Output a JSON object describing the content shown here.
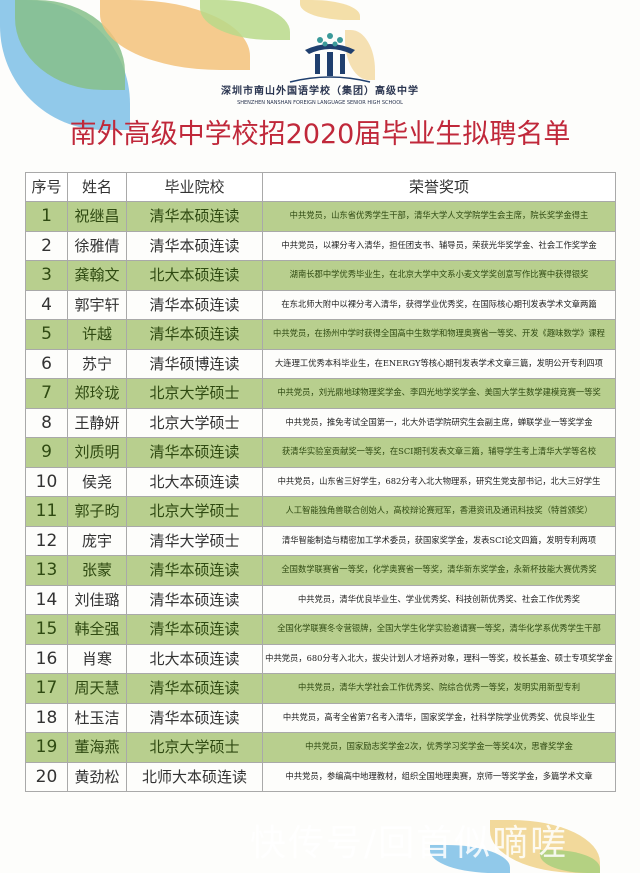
{
  "header": {
    "school_name_cn": "深圳市南山外国语学校（集团）高级中学",
    "school_name_en": "SHENZHEN NANSHAN FOREIGN LANGUAGE SENIOR HIGH SCHOOL",
    "title": "南外高级中学校招2020届毕业生拟聘名单"
  },
  "colors": {
    "title": "#c0283a",
    "row_highlight": "#b8cf8e",
    "logo": "#1f3f6e"
  },
  "table": {
    "columns": [
      "序号",
      "姓名",
      "毕业院校",
      "荣誉奖项"
    ],
    "rows": [
      {
        "no": "1",
        "name": "祝继昌",
        "school": "清华本硕连读",
        "honors": "中共党员，山东省优秀学生干部，清华大学人文学院学生会主席，院长奖学金得主"
      },
      {
        "no": "2",
        "name": "徐雅倩",
        "school": "清华本硕连读",
        "honors": "中共党员，以裸分考入清华，担任团支书、辅导员，荣获光华奖学金、社会工作奖学金"
      },
      {
        "no": "3",
        "name": "龚翰文",
        "school": "北大本硕连读",
        "honors": "湖南长郡中学优秀毕业生，在北京大学中文系小麦文学奖创意写作比赛中获得银奖"
      },
      {
        "no": "4",
        "name": "郭宇轩",
        "school": "清华本硕连读",
        "honors": "在东北师大附中以裸分考入清华，获得学业优秀奖，在国际核心期刊发表学术文章两篇"
      },
      {
        "no": "5",
        "name": "许越",
        "school": "清华本硕连读",
        "honors": "中共党员，在扬州中学时获得全国高中生数学和物理奥赛省一等奖、开发《趣味数学》课程"
      },
      {
        "no": "6",
        "name": "苏宁",
        "school": "清华硕博连读",
        "honors": "大连理工优秀本科毕业生，在ENERGY等核心期刊发表学术文章三篇，发明公开专利四项"
      },
      {
        "no": "7",
        "name": "郑玲珑",
        "school": "北京大学硕士",
        "honors": "中共党员，刘光鼎地球物理奖学金、李四光地学奖学金、美国大学生数学建模竞赛一等奖"
      },
      {
        "no": "8",
        "name": "王静妍",
        "school": "北京大学硕士",
        "honors": "中共党员，推免考试全国第一，北大外语学院研究生会副主席，蝉联学业一等奖学金"
      },
      {
        "no": "9",
        "name": "刘质明",
        "school": "清华本硕连读",
        "honors": "获清华实验室贡献奖一等奖，在SCI期刊发表文章三篇，辅导学生考上清华大学等名校"
      },
      {
        "no": "10",
        "name": "侯尧",
        "school": "北大本硕连读",
        "honors": "中共党员，山东省三好学生，682分考入北大物理系，研究生党支部书记，北大三好学生"
      },
      {
        "no": "11",
        "name": "郭子昀",
        "school": "北京大学硕士",
        "honors": "人工智能独角兽联合创始人，高校辩论赛冠军，香港资讯及通讯科技奖（特首颁奖）"
      },
      {
        "no": "12",
        "name": "庞宇",
        "school": "清华大学硕士",
        "honors": "清华智能制造与精密加工学术委员，获国家奖学金，发表SCI论文四篇，发明专利两项"
      },
      {
        "no": "13",
        "name": "张蒙",
        "school": "清华本硕连读",
        "honors": "全国数学联赛省一等奖，化学奥赛省一等奖，清华新东奖学金，永新杯技能大赛优秀奖"
      },
      {
        "no": "14",
        "name": "刘佳璐",
        "school": "清华本硕连读",
        "honors": "中共党员，清华优良毕业生、学业优秀奖、科技创新优秀奖、社会工作优秀奖"
      },
      {
        "no": "15",
        "name": "韩全强",
        "school": "清华本硕连读",
        "honors": "全国化学联赛冬令营银牌，全国大学生化学实验邀请赛一等奖，清华化学系优秀学生干部"
      },
      {
        "no": "16",
        "name": "肖寒",
        "school": "北大本硕连读",
        "honors": "中共党员，680分考入北大，拔尖计划人才培养对象，理科一等奖，校长基金、硕士专项奖学金"
      },
      {
        "no": "17",
        "name": "周天慧",
        "school": "清华本硕连读",
        "honors": "中共党员，清华大学社会工作优秀奖、院综合优秀一等奖，发明实用新型专利"
      },
      {
        "no": "18",
        "name": "杜玉洁",
        "school": "清华本硕连读",
        "honors": "中共党员，高考全省第7名考入清华，国家奖学金，社科学院学业优秀奖、优良毕业生"
      },
      {
        "no": "19",
        "name": "董海燕",
        "school": "北京大学硕士",
        "honors": "中共党员，国家励志奖学金2次，优秀学习奖学金一等奖4次，思睿奖学金"
      },
      {
        "no": "20",
        "name": "黄劲松",
        "school": "北师大本硕连读",
        "honors": "中共党员，参编高中地理教材，组织全国地理奥赛，京师一等奖学金，多篇学术文章"
      }
    ]
  },
  "watermark": "快传号/回首似嘀嗟"
}
